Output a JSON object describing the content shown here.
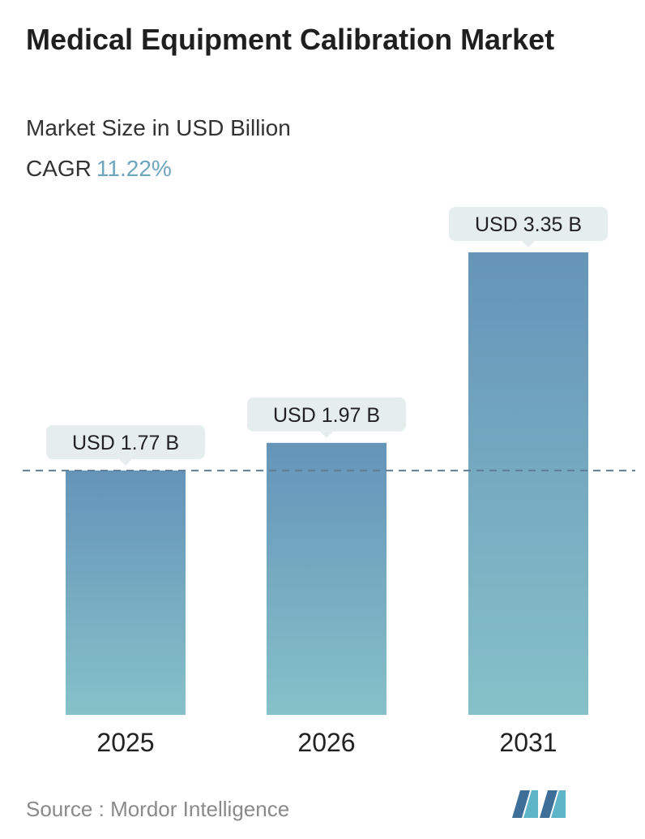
{
  "header": {
    "title": "Medical Equipment Calibration Market",
    "subtitle": "Market Size in USD Billion",
    "cagr_label": "CAGR",
    "cagr_value": "11.22%"
  },
  "footer": {
    "source_label": "Source :",
    "source_name": "Mordor Intelligence"
  },
  "colors": {
    "bar_top": "#6594b9",
    "bar_bottom": "#86c1c9",
    "label_bg": "#e6eded",
    "dashed_line": "#5f7f99",
    "cagr_accent": "#6ea5bd"
  },
  "chart_data": {
    "type": "bar",
    "categories": [
      "2025",
      "2026",
      "2031"
    ],
    "values": [
      1.77,
      1.97,
      3.35
    ],
    "data_labels": [
      "USD 1.77 B",
      "USD 1.97 B",
      "USD 3.35 B"
    ],
    "title": "Medical Equipment Calibration Market",
    "subtitle": "Market Size in USD Billion",
    "xlabel": "",
    "ylabel": "",
    "ylim": [
      0,
      3.35
    ],
    "grid": false,
    "reference_line": {
      "value": 1.77,
      "style": "dashed"
    },
    "legend": "none"
  }
}
